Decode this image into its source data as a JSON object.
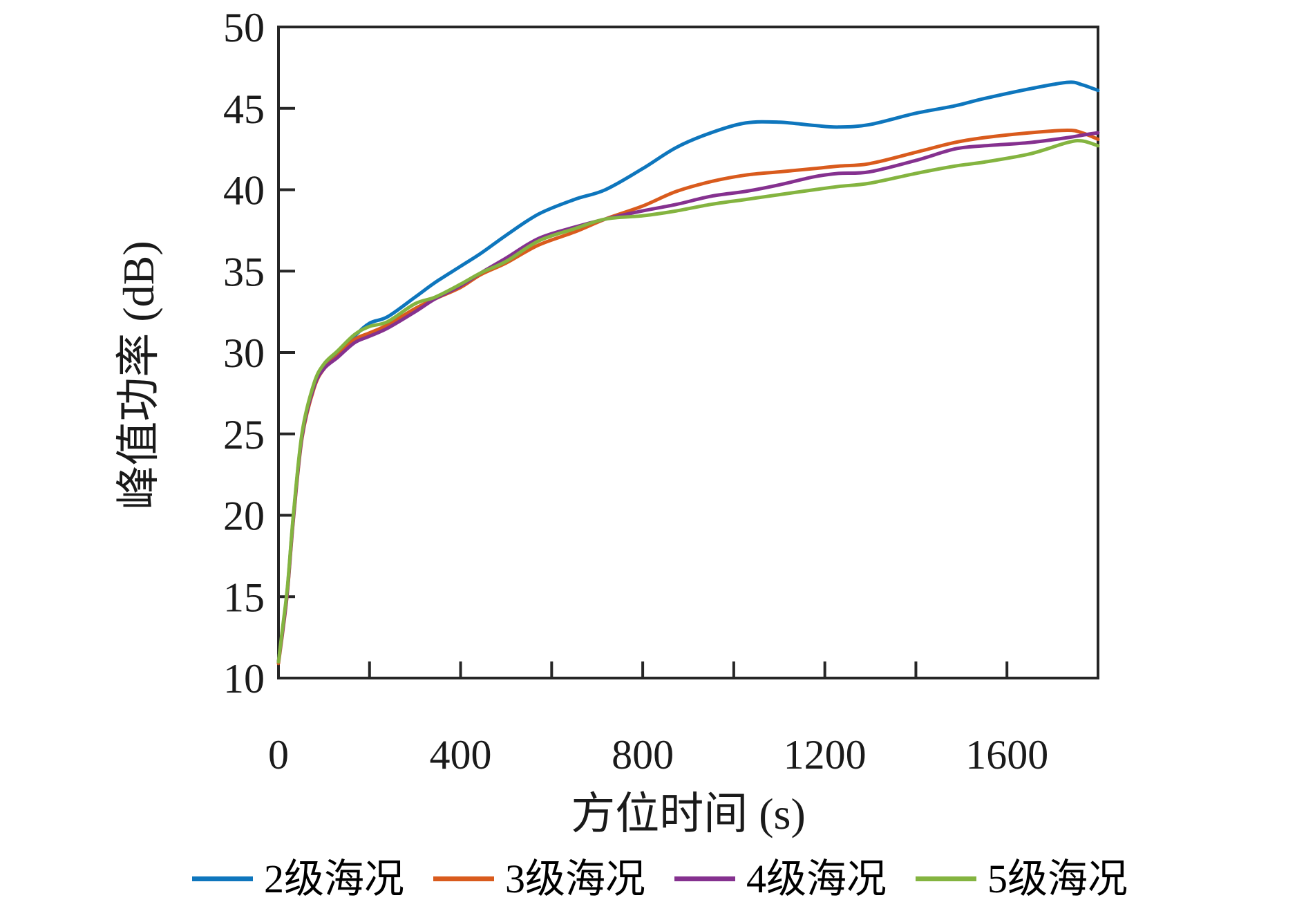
{
  "chart_data": {
    "type": "line",
    "title": "",
    "xlabel": "方位时间 (s)",
    "ylabel": "峰值功率 (dB)",
    "xlim": [
      0,
      1800
    ],
    "ylim": [
      10,
      50
    ],
    "x_tick_step": 200,
    "x_labeled_ticks": [
      0,
      400,
      800,
      1200,
      1600
    ],
    "y_ticks": [
      10,
      15,
      20,
      25,
      30,
      35,
      40,
      45,
      50
    ],
    "grid": "off",
    "legend_position": "bottom",
    "axis_color": "#262626",
    "x": [
      0,
      10,
      20,
      33,
      52,
      78,
      100,
      130,
      167,
      200,
      240,
      300,
      344,
      400,
      445,
      500,
      571,
      650,
      718,
      800,
      874,
      950,
      1026,
      1100,
      1177,
      1230,
      1298,
      1400,
      1485,
      1550,
      1650,
      1733,
      1765,
      1800
    ],
    "series": [
      {
        "name": "2级海况",
        "color": "#0e76bd",
        "values": [
          11.0,
          13.2,
          15.6,
          20.0,
          25.0,
          28.0,
          29.2,
          29.9,
          31.0,
          31.8,
          32.2,
          33.4,
          34.3,
          35.3,
          36.1,
          37.2,
          38.5,
          39.4,
          40.0,
          41.3,
          42.6,
          43.5,
          44.1,
          44.15,
          43.95,
          43.85,
          44.0,
          44.7,
          45.15,
          45.6,
          46.2,
          46.6,
          46.45,
          46.1
        ]
      },
      {
        "name": "3级海况",
        "color": "#d95b1d",
        "values": [
          10.9,
          13.0,
          15.4,
          19.8,
          24.8,
          27.8,
          29.0,
          29.8,
          30.8,
          31.2,
          31.7,
          32.7,
          33.3,
          34.0,
          34.8,
          35.5,
          36.6,
          37.4,
          38.2,
          39.0,
          39.9,
          40.5,
          40.9,
          41.1,
          41.3,
          41.45,
          41.6,
          42.3,
          42.9,
          43.2,
          43.5,
          43.65,
          43.5,
          43.1
        ]
      },
      {
        "name": "4级海况",
        "color": "#85318f",
        "values": [
          11.0,
          13.1,
          15.5,
          19.9,
          24.9,
          27.9,
          29.0,
          29.7,
          30.6,
          31.0,
          31.5,
          32.5,
          33.3,
          34.1,
          34.9,
          35.8,
          37.0,
          37.7,
          38.2,
          38.7,
          39.1,
          39.6,
          39.9,
          40.3,
          40.8,
          41.0,
          41.1,
          41.8,
          42.5,
          42.7,
          42.9,
          43.2,
          43.35,
          43.5
        ]
      },
      {
        "name": "5级海况",
        "color": "#84b440",
        "values": [
          11.0,
          13.3,
          15.7,
          20.1,
          25.1,
          28.1,
          29.3,
          30.1,
          31.1,
          31.6,
          31.9,
          33.0,
          33.4,
          34.2,
          34.9,
          35.6,
          36.85,
          37.6,
          38.2,
          38.4,
          38.7,
          39.1,
          39.4,
          39.7,
          40.0,
          40.2,
          40.4,
          41.0,
          41.45,
          41.7,
          42.2,
          42.9,
          43.0,
          42.7
        ]
      }
    ]
  }
}
